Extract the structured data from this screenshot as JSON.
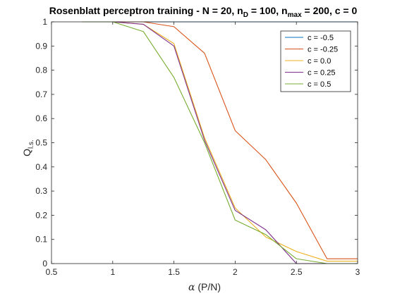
{
  "chart_data": {
    "type": "line",
    "title": {
      "main": "Rosenblatt perceptron training - N = 20, n",
      "sub1": "D",
      "mid1": " = 100, n",
      "sub2": "max",
      "mid2": " = 200, c = 0"
    },
    "xlabel": {
      "symbol": "α",
      "text": " (P/N)"
    },
    "ylabel": {
      "main": "Q",
      "sub": "l.s."
    },
    "xlim": [
      0.5,
      3
    ],
    "ylim": [
      0,
      1
    ],
    "xticks": [
      0.5,
      1,
      1.5,
      2,
      2.5,
      3
    ],
    "xtick_labels": [
      "0.5",
      "1",
      "1.5",
      "2",
      "2.5",
      "3"
    ],
    "yticks": [
      0,
      0.1,
      0.2,
      0.3,
      0.4,
      0.5,
      0.6,
      0.7,
      0.8,
      0.9,
      1
    ],
    "ytick_labels": [
      "0",
      "0.1",
      "0.2",
      "0.3",
      "0.4",
      "0.5",
      "0.6",
      "0.7",
      "0.8",
      "0.9",
      "1"
    ],
    "grid": false,
    "legend_position": "top-right",
    "x": [
      0.75,
      1,
      1.25,
      1.5,
      1.75,
      2,
      2.25,
      2.5,
      2.75,
      3
    ],
    "series": [
      {
        "name": "c = -0.5",
        "color": "#0072BD",
        "values": [
          1,
          1,
          1,
          1,
          1,
          1,
          1,
          1,
          1,
          1
        ]
      },
      {
        "name": "c = -0.25",
        "color": "#D95319",
        "values": [
          1,
          1,
          1,
          0.98,
          0.87,
          0.55,
          0.43,
          0.25,
          0.02,
          0.02
        ]
      },
      {
        "name": "c = 0.0",
        "color": "#EDB120",
        "values": [
          1,
          1,
          0.99,
          0.91,
          0.52,
          0.23,
          0.11,
          0.05,
          0.01,
          0.01
        ]
      },
      {
        "name": "c = 0.25",
        "color": "#7E2F8E",
        "values": [
          1,
          1,
          0.99,
          0.9,
          0.51,
          0.22,
          0.14,
          0.0,
          0.0,
          0.0
        ]
      },
      {
        "name": "c = 0.5",
        "color": "#77AC30",
        "values": [
          1,
          1,
          0.96,
          0.77,
          0.5,
          0.18,
          0.12,
          0.02,
          0.0,
          0.0
        ]
      }
    ]
  }
}
